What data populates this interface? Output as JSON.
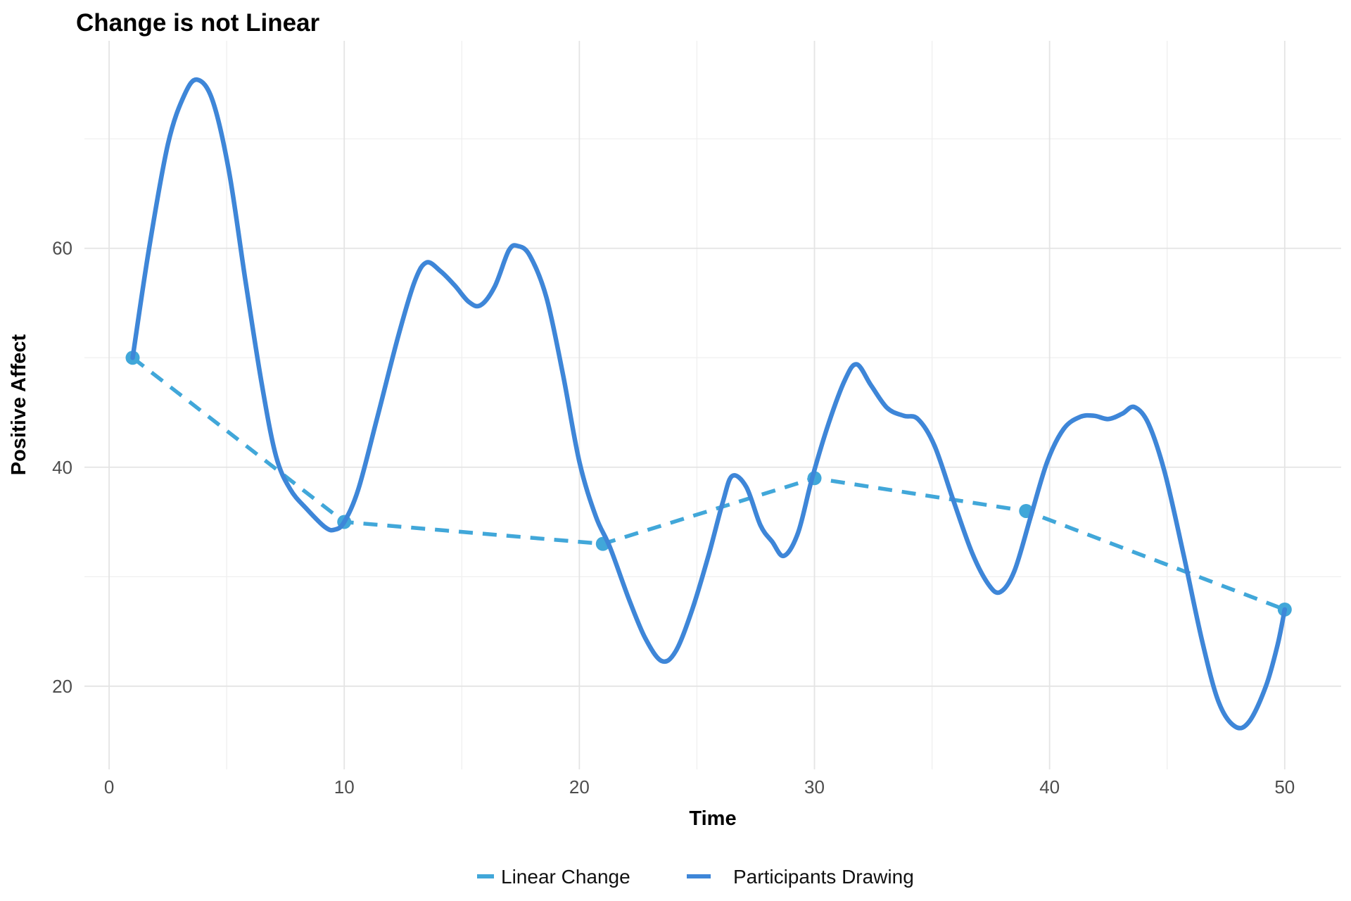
{
  "title": "Change is not Linear",
  "axes": {
    "x_label": "Time",
    "y_label": "Positive Affect",
    "x_ticks": [
      0,
      10,
      20,
      30,
      40,
      50
    ],
    "y_ticks": [
      20,
      40,
      60
    ],
    "x_minor_ticks": [
      5,
      15,
      25,
      35,
      45
    ],
    "y_minor_ticks": [
      30,
      50,
      70
    ]
  },
  "colors": {
    "linear_change": "#41A7D9",
    "participants_drawing": "#3E86D8",
    "grid_major": "#e4e4e4",
    "grid_minor": "#f0f0f0",
    "tick_text": "#4d4d4d",
    "background": "#ffffff"
  },
  "legend": {
    "position": "bottom",
    "items": [
      {
        "label": "Linear Change",
        "style": "dashed",
        "color": "#41A7D9"
      },
      {
        "label": "Participants Drawing",
        "style": "solid",
        "color": "#3E86D8"
      }
    ]
  },
  "chart_data": {
    "type": "line",
    "title": "Change is not Linear",
    "xlabel": "Time",
    "ylabel": "Positive Affect",
    "xlim": [
      -1.05,
      52.4
    ],
    "ylim": [
      12.4,
      78.95
    ],
    "grid": true,
    "legend_position": "bottom",
    "series": [
      {
        "name": "Linear Change",
        "style": "dashed",
        "color": "#41A7D9",
        "markers": true,
        "marker_radius": 10,
        "points": [
          [
            1,
            50
          ],
          [
            10,
            35
          ],
          [
            21,
            33
          ],
          [
            30,
            39
          ],
          [
            39,
            36
          ],
          [
            50,
            27
          ]
        ]
      },
      {
        "name": "Participants Drawing",
        "style": "solid",
        "color": "#3E86D8",
        "markers": false,
        "smooth": true,
        "points": [
          [
            1,
            50
          ],
          [
            1.7,
            60
          ],
          [
            2.5,
            69.5
          ],
          [
            3.2,
            74
          ],
          [
            3.75,
            75.4
          ],
          [
            4.4,
            73.5
          ],
          [
            5.1,
            67
          ],
          [
            5.8,
            57
          ],
          [
            6.5,
            47.5
          ],
          [
            7.1,
            41
          ],
          [
            7.7,
            38
          ],
          [
            8.4,
            36.2
          ],
          [
            9.2,
            34.5
          ],
          [
            9.6,
            34.3
          ],
          [
            10,
            35
          ],
          [
            10.6,
            38
          ],
          [
            11.4,
            44.5
          ],
          [
            12.3,
            52
          ],
          [
            13,
            57
          ],
          [
            13.5,
            58.7
          ],
          [
            14.1,
            57.9
          ],
          [
            14.7,
            56.6
          ],
          [
            15.3,
            55.1
          ],
          [
            15.8,
            54.8
          ],
          [
            16.4,
            56.5
          ],
          [
            17,
            59.8
          ],
          [
            17.4,
            60.2
          ],
          [
            17.9,
            59.3
          ],
          [
            18.6,
            55.5
          ],
          [
            19.3,
            48.5
          ],
          [
            20,
            40.5
          ],
          [
            20.7,
            35.5
          ],
          [
            21.3,
            32.7
          ],
          [
            22.1,
            28
          ],
          [
            22.8,
            24.4
          ],
          [
            23.5,
            22.3
          ],
          [
            24.1,
            23.2
          ],
          [
            24.8,
            27
          ],
          [
            25.5,
            32
          ],
          [
            26.1,
            36.8
          ],
          [
            26.5,
            39.2
          ],
          [
            27.1,
            38.2
          ],
          [
            27.7,
            34.7
          ],
          [
            28.2,
            33.2
          ],
          [
            28.7,
            31.9
          ],
          [
            29.3,
            34
          ],
          [
            29.9,
            39
          ],
          [
            30.6,
            44
          ],
          [
            31.3,
            48
          ],
          [
            31.8,
            49.4
          ],
          [
            32.4,
            47.5
          ],
          [
            33.1,
            45.4
          ],
          [
            33.8,
            44.7
          ],
          [
            34.4,
            44.4
          ],
          [
            35.1,
            42
          ],
          [
            35.9,
            37
          ],
          [
            36.7,
            32.2
          ],
          [
            37.4,
            29.3
          ],
          [
            37.9,
            28.6
          ],
          [
            38.5,
            30.5
          ],
          [
            39.2,
            35.5
          ],
          [
            39.9,
            40.5
          ],
          [
            40.6,
            43.5
          ],
          [
            41.3,
            44.6
          ],
          [
            41.9,
            44.7
          ],
          [
            42.5,
            44.4
          ],
          [
            43.1,
            44.9
          ],
          [
            43.6,
            45.5
          ],
          [
            44.2,
            44
          ],
          [
            44.9,
            39.5
          ],
          [
            45.7,
            32
          ],
          [
            46.5,
            24
          ],
          [
            47.2,
            18.5
          ],
          [
            47.9,
            16.3
          ],
          [
            48.5,
            16.8
          ],
          [
            49.2,
            20
          ],
          [
            49.7,
            23.8
          ],
          [
            50,
            27
          ]
        ]
      }
    ]
  }
}
